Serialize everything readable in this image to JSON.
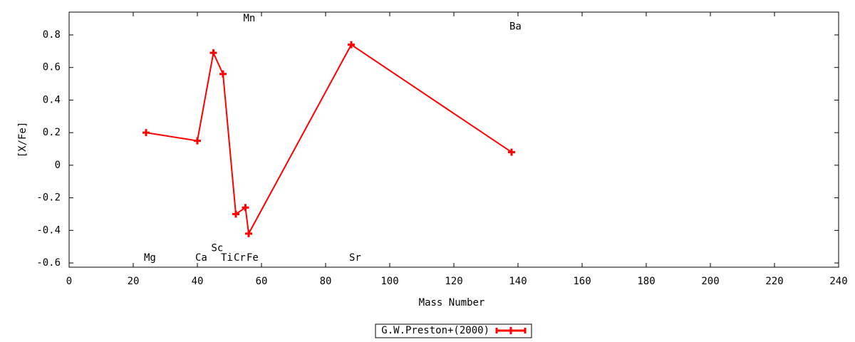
{
  "chart_data": {
    "type": "line",
    "x_label": "Mass Number",
    "y_label": "[X/Fe]",
    "xlim": [
      0,
      240
    ],
    "xticks": [
      0,
      20,
      40,
      60,
      80,
      100,
      120,
      140,
      160,
      180,
      200,
      220,
      240
    ],
    "ylim": [
      -0.626,
      0.94
    ],
    "yticks": [
      -0.6,
      -0.4,
      -0.2,
      0,
      0.2,
      0.4,
      0.6,
      0.8
    ],
    "series": [
      {
        "name": "G.W.Preston+(2000)",
        "color": "#ff0000",
        "x": [
          24,
          40,
          45,
          48,
          52,
          55,
          56,
          88,
          138
        ],
        "values": [
          0.2,
          0.15,
          0.69,
          0.56,
          -0.3,
          -0.26,
          -0.42,
          0.74,
          0.08
        ]
      }
    ],
    "annotations": [
      {
        "text": "Mg",
        "x": 24,
        "y": -0.57
      },
      {
        "text": "Ca",
        "x": 40,
        "y": -0.57
      },
      {
        "text": "Sc",
        "x": 45,
        "y": -0.51
      },
      {
        "text": "Ti",
        "x": 48,
        "y": -0.57
      },
      {
        "text": "Cr",
        "x": 52,
        "y": -0.57
      },
      {
        "text": "Mn",
        "x": 55,
        "y": 0.9
      },
      {
        "text": "Fe",
        "x": 56,
        "y": -0.57
      },
      {
        "text": "Sr",
        "x": 88,
        "y": -0.57
      },
      {
        "text": "Ba",
        "x": 138,
        "y": 0.85
      }
    ],
    "legend": "bottom"
  }
}
